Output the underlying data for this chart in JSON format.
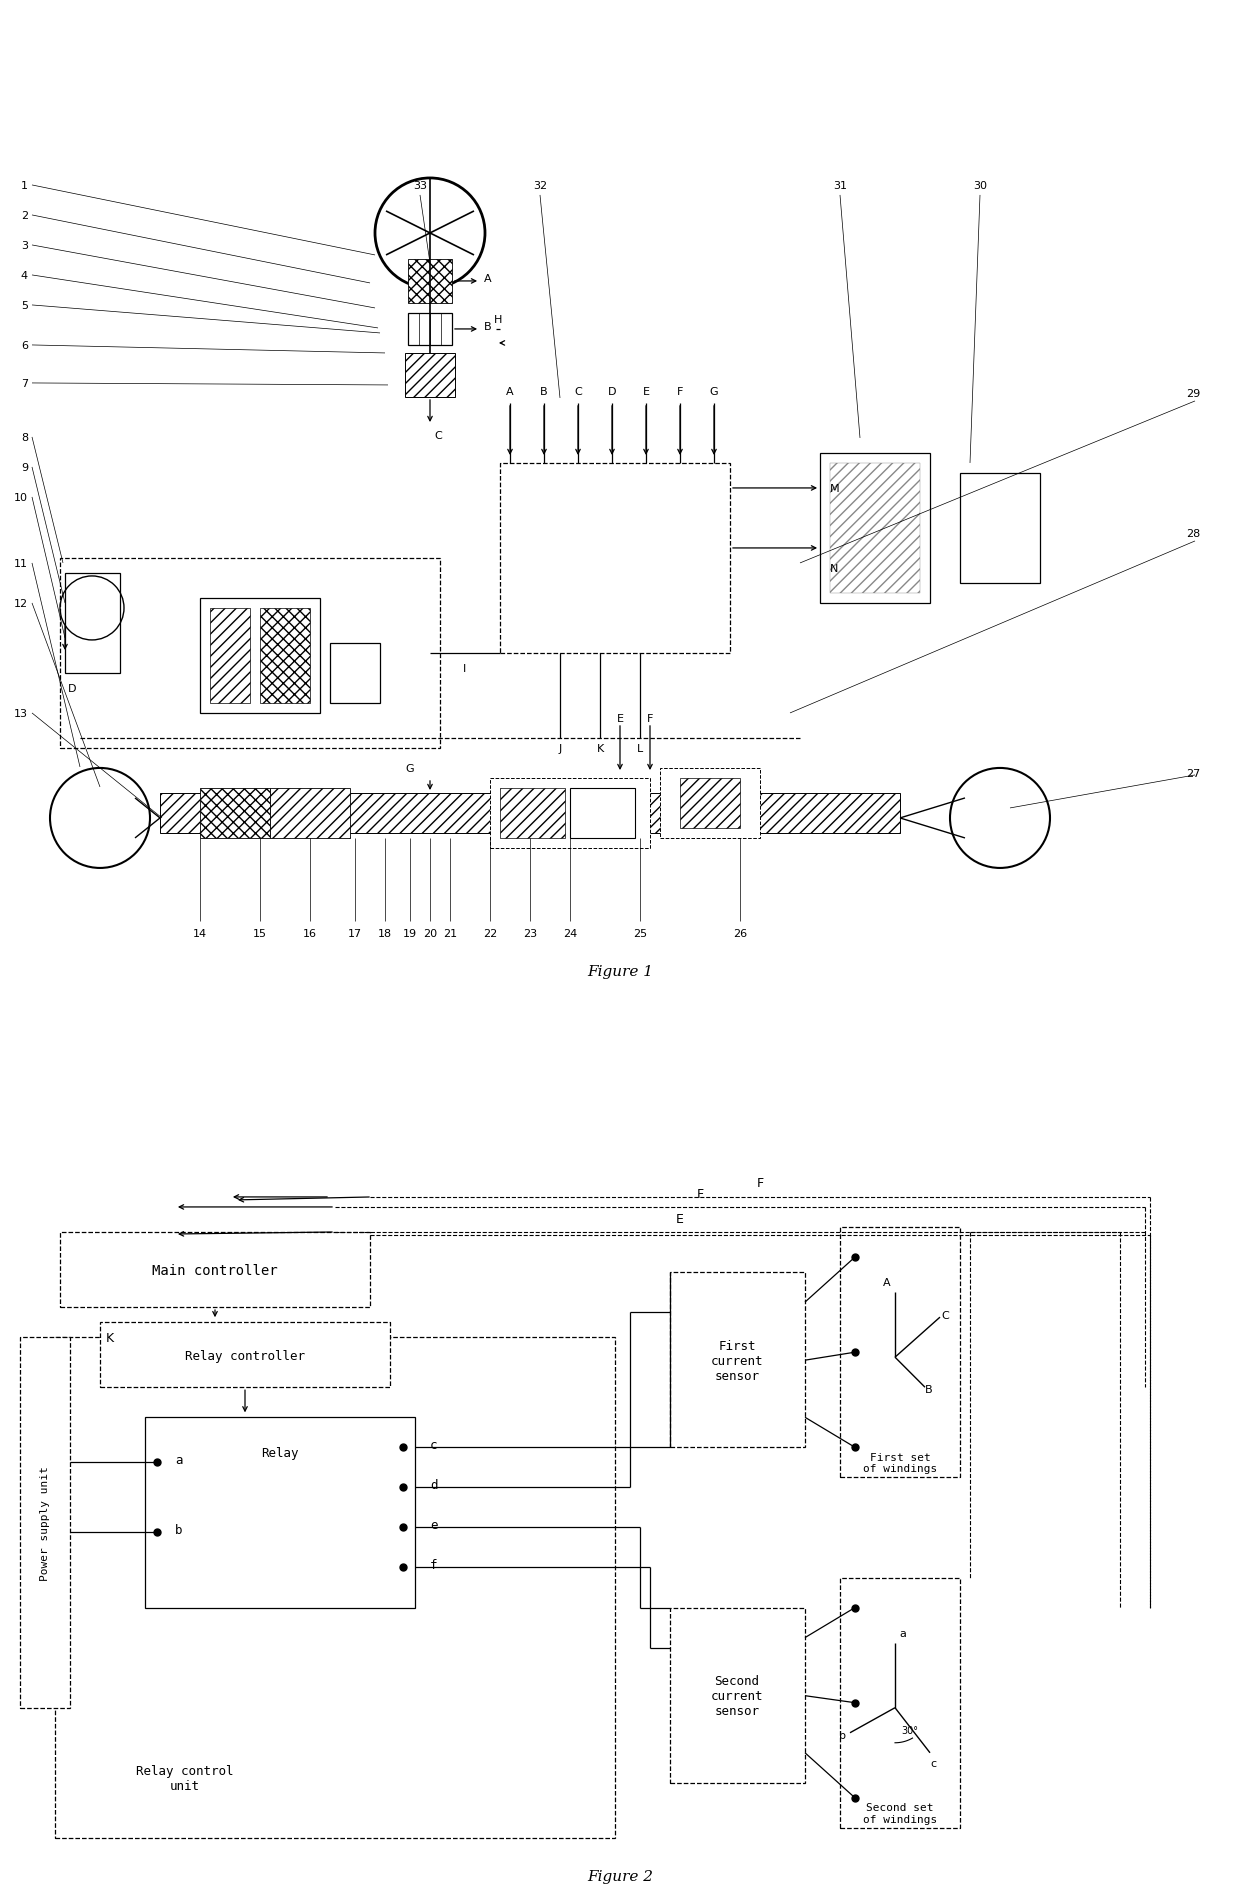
{
  "fig1_title": "Figure 1",
  "fig2_title": "Figure 2",
  "fig1_left_labels": [
    "1",
    "2",
    "3",
    "4",
    "5",
    "6",
    "7",
    "8",
    "9",
    "10",
    "11",
    "12",
    "13"
  ],
  "fig1_bottom_labels": [
    "14",
    "15",
    "16",
    "17",
    "18",
    "19",
    "20",
    "21",
    "22",
    "23",
    "24",
    "25",
    "26"
  ],
  "fig1_top_labels": [
    "33",
    "32",
    "31",
    "30"
  ],
  "fig1_right_labels": [
    "29",
    "28",
    "27"
  ],
  "pins": [
    "A",
    "B",
    "C",
    "D",
    "E",
    "F",
    "G"
  ],
  "relay_ports_right": [
    "c",
    "d",
    "e",
    "f"
  ],
  "relay_ports_left": [
    "a",
    "b"
  ],
  "winding1_labels": [
    "A",
    "B",
    "C"
  ],
  "winding2_labels": [
    "a",
    "b",
    "c"
  ]
}
